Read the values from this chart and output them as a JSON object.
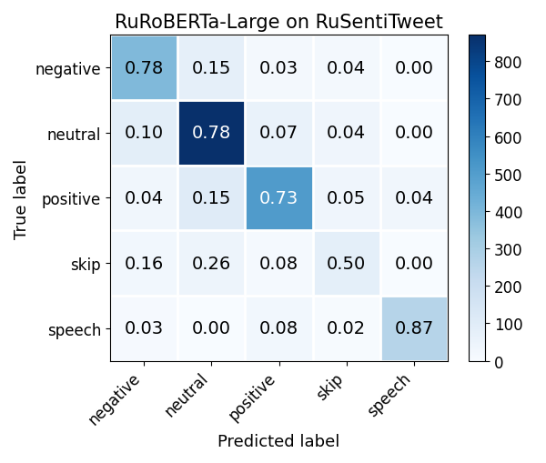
{
  "title": "RuRoBERTa-Large on RuSentiTweet",
  "labels": [
    "negative",
    "neutral",
    "positive",
    "skip",
    "speech"
  ],
  "xlabel": "Predicted label",
  "ylabel": "True label",
  "matrix_values": [
    [
      0.78,
      0.15,
      0.03,
      0.04,
      0.0
    ],
    [
      0.1,
      0.78,
      0.07,
      0.04,
      0.0
    ],
    [
      0.04,
      0.15,
      0.73,
      0.05,
      0.04
    ],
    [
      0.16,
      0.26,
      0.08,
      0.5,
      0.0
    ],
    [
      0.03,
      0.0,
      0.08,
      0.02,
      0.87
    ]
  ],
  "raw_counts": [
    [
      390,
      75,
      15,
      20,
      0
    ],
    [
      86,
      869,
      60,
      34,
      0
    ],
    [
      28,
      104,
      505,
      35,
      28
    ],
    [
      26,
      42,
      13,
      81,
      0
    ],
    [
      9,
      0,
      24,
      6,
      261
    ]
  ],
  "cmap": "Blues",
  "vmin": 0,
  "vmax": 870,
  "colorbar_ticks": [
    0,
    100,
    200,
    300,
    400,
    500,
    600,
    700,
    800
  ],
  "title_fontsize": 15,
  "label_fontsize": 13,
  "tick_fontsize": 12,
  "cell_fontsize": 14,
  "text_threshold": 400,
  "figsize": [
    6.0,
    5.1
  ],
  "dpi": 100
}
